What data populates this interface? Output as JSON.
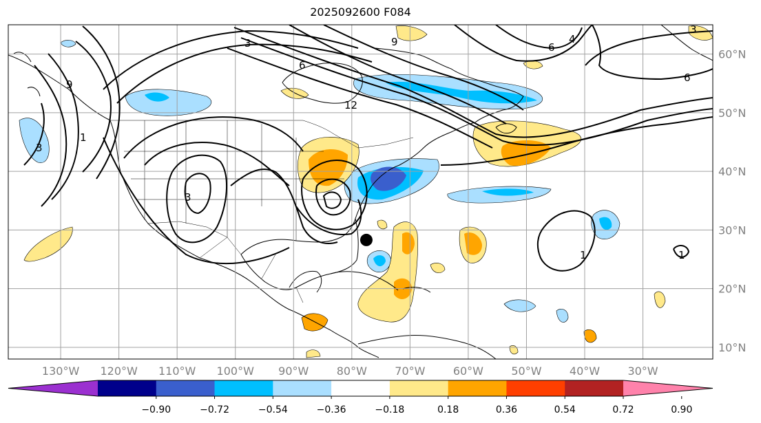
{
  "title": "2025092600 F084",
  "map": {
    "lon_range": [
      -139,
      -18
    ],
    "lat_range": [
      8,
      65
    ],
    "lon_ticks": [
      "130°W",
      "120°W",
      "110°W",
      "100°W",
      "90°W",
      "80°W",
      "70°W",
      "60°W",
      "50°W",
      "40°W",
      "30°W"
    ],
    "lat_ticks": [
      "60°N",
      "50°N",
      "40°N",
      "30°N",
      "20°N",
      "10°N"
    ],
    "gridlines": true,
    "storm_marker": {
      "lon": -77.5,
      "lat": 28.3
    }
  },
  "colorbar": {
    "ticks": [
      "−0.90",
      "−0.72",
      "−0.54",
      "−0.36",
      "−0.18",
      "0.18",
      "0.36",
      "0.54",
      "0.72",
      "0.90"
    ],
    "colors": [
      "#9b30d0",
      "#00008b",
      "#3a5fcd",
      "#00bfff",
      "#aadfff",
      "#ffffff",
      "#ffe98a",
      "#ffa500",
      "#ff3f00",
      "#b22222",
      "#ff82ab"
    ],
    "extend": "both"
  },
  "contour_labels": [
    "9",
    "6",
    "3",
    "3",
    "1",
    "1",
    "6",
    "6",
    "9",
    "12",
    "3",
    "1",
    "3",
    "4"
  ]
}
